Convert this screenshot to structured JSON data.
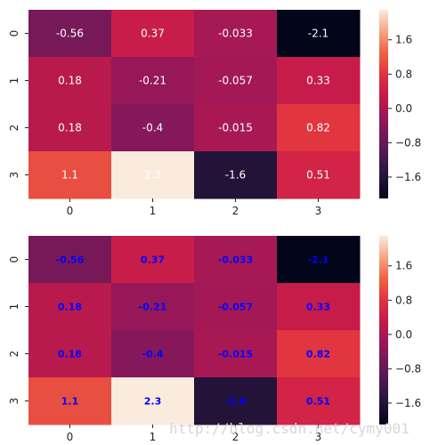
{
  "chart_data": [
    {
      "type": "heatmap",
      "title": "",
      "xlabel": "",
      "ylabel": "",
      "x_categories": [
        "0",
        "1",
        "2",
        "3"
      ],
      "y_categories": [
        "0",
        "1",
        "2",
        "3"
      ],
      "values": [
        [
          -0.56,
          0.37,
          -0.033,
          -2.1
        ],
        [
          0.18,
          -0.21,
          -0.057,
          0.33
        ],
        [
          0.18,
          -0.4,
          -0.015,
          0.82
        ],
        [
          1.1,
          2.3,
          -1.6,
          0.51
        ]
      ],
      "annotations": [
        [
          "-0.56",
          "0.37",
          "-0.033",
          "-2.1"
        ],
        [
          "0.18",
          "-0.21",
          "-0.057",
          "0.33"
        ],
        [
          "0.18",
          "-0.4",
          "-0.015",
          "0.82"
        ],
        [
          "1.1",
          "2.3",
          "-1.6",
          "0.51"
        ]
      ],
      "annotation_style": "white",
      "colormap": "rocket",
      "vmin": -2.1,
      "vmax": 2.3,
      "colorbar_ticks": [
        -1.6,
        -0.8,
        0.0,
        0.8,
        1.6
      ],
      "colorbar_tick_labels": [
        "−1.6",
        "−0.8",
        "0.0",
        "0.8",
        "1.6"
      ]
    },
    {
      "type": "heatmap",
      "title": "",
      "xlabel": "",
      "ylabel": "",
      "x_categories": [
        "0",
        "1",
        "2",
        "3"
      ],
      "y_categories": [
        "0",
        "1",
        "2",
        "3"
      ],
      "values": [
        [
          -0.56,
          0.37,
          -0.033,
          -2.1
        ],
        [
          0.18,
          -0.21,
          -0.057,
          0.33
        ],
        [
          0.18,
          -0.4,
          -0.015,
          0.82
        ],
        [
          1.1,
          2.3,
          -1.6,
          0.51
        ]
      ],
      "annotations": [
        [
          "-0.56",
          "0.37",
          "-0.033",
          "-2.1"
        ],
        [
          "0.18",
          "-0.21",
          "-0.057",
          "0.33"
        ],
        [
          "0.18",
          "-0.4",
          "-0.015",
          "0.82"
        ],
        [
          "1.1",
          "2.3",
          "-1.6",
          "0.51"
        ]
      ],
      "annotation_style": "blue-bold",
      "annotation_color": "#0000ff",
      "colormap": "rocket",
      "vmin": -2.1,
      "vmax": 2.3,
      "colorbar_ticks": [
        -1.6,
        -0.8,
        0.0,
        0.8,
        1.6
      ],
      "colorbar_tick_labels": [
        "−1.6",
        "−0.8",
        "0.0",
        "0.8",
        "1.6"
      ]
    }
  ],
  "watermark": "http://blog.csdn.net/cymy001"
}
